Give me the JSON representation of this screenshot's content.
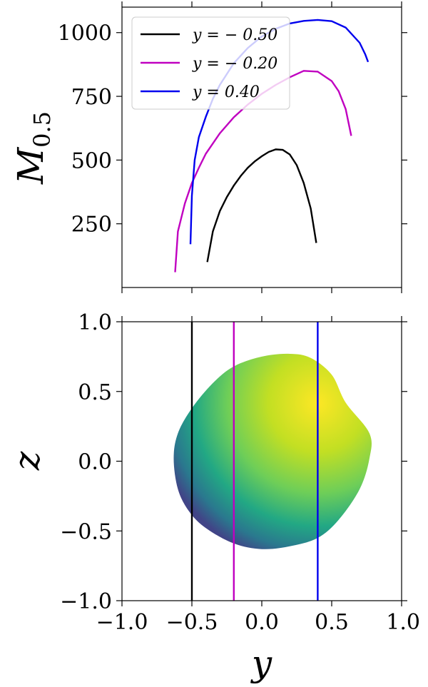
{
  "chart_data": [
    {
      "type": "line",
      "ylabel_base": "M",
      "ylabel_sub": "0.5",
      "xlim": [
        -1.0,
        1.0
      ],
      "ylim": [
        0,
        1100
      ],
      "yticks": [
        250,
        500,
        750,
        1000
      ],
      "ytick_labels": [
        "250",
        "500",
        "750",
        "1000"
      ],
      "legend_position": "top-left",
      "series": [
        {
          "name": "y = − 0.50",
          "color": "#000000",
          "x": [
            -0.39,
            -0.35,
            -0.3,
            -0.25,
            -0.2,
            -0.15,
            -0.1,
            -0.05,
            0.0,
            0.05,
            0.1,
            0.15,
            0.2,
            0.25,
            0.3,
            0.35,
            0.39
          ],
          "y": [
            100,
            220,
            300,
            355,
            400,
            438,
            470,
            495,
            515,
            532,
            542,
            540,
            522,
            480,
            410,
            310,
            175
          ]
        },
        {
          "name": "y = − 0.20",
          "color": "#c000c0",
          "x": [
            -0.62,
            -0.6,
            -0.55,
            -0.5,
            -0.45,
            -0.4,
            -0.3,
            -0.2,
            -0.1,
            0.0,
            0.1,
            0.2,
            0.3,
            0.4,
            0.5,
            0.55,
            0.6,
            0.64
          ],
          "y": [
            60,
            220,
            330,
            410,
            470,
            525,
            605,
            668,
            718,
            760,
            795,
            825,
            850,
            847,
            810,
            770,
            700,
            595
          ]
        },
        {
          "name": "y = 0.40",
          "color": "#0000ee",
          "x": [
            -0.51,
            -0.5,
            -0.48,
            -0.45,
            -0.4,
            -0.35,
            -0.3,
            -0.2,
            -0.1,
            0.0,
            0.1,
            0.2,
            0.3,
            0.4,
            0.5,
            0.6,
            0.7,
            0.74,
            0.76
          ],
          "y": [
            170,
            360,
            500,
            590,
            670,
            740,
            795,
            880,
            940,
            985,
            1015,
            1036,
            1046,
            1050,
            1045,
            1020,
            960,
            915,
            885
          ]
        }
      ]
    },
    {
      "type": "scatter",
      "xlabel": "y",
      "ylabel": "z",
      "xlim": [
        -1.0,
        1.0
      ],
      "ylim": [
        -1.0,
        1.0
      ],
      "xticks": [
        -1.0,
        -0.5,
        0.0,
        0.5,
        1.0
      ],
      "xtick_labels": [
        "−1.0",
        "−0.5",
        "0.0",
        "0.5",
        "1.0"
      ],
      "yticks": [
        1.0,
        0.5,
        0.0,
        -0.5,
        -1.0
      ],
      "ytick_labels": [
        "1.0",
        "0.5",
        "0.0",
        "−0.5",
        "−1.0"
      ],
      "vertical_lines": [
        {
          "x": -0.5,
          "color": "#000000"
        },
        {
          "x": -0.2,
          "color": "#c000c0"
        },
        {
          "x": 0.4,
          "color": "#0000ee"
        }
      ],
      "region": {
        "colormap": "viridis",
        "boundary": [
          [
            -0.63,
            0.02
          ],
          [
            -0.6,
            0.2
          ],
          [
            -0.5,
            0.38
          ],
          [
            -0.35,
            0.56
          ],
          [
            -0.2,
            0.68
          ],
          [
            0.0,
            0.75
          ],
          [
            0.2,
            0.77
          ],
          [
            0.35,
            0.74
          ],
          [
            0.5,
            0.62
          ],
          [
            0.6,
            0.42
          ],
          [
            0.77,
            0.2
          ],
          [
            0.77,
            0.02
          ],
          [
            0.7,
            -0.2
          ],
          [
            0.55,
            -0.42
          ],
          [
            0.4,
            -0.55
          ],
          [
            0.2,
            -0.61
          ],
          [
            0.0,
            -0.63
          ],
          [
            -0.2,
            -0.59
          ],
          [
            -0.4,
            -0.48
          ],
          [
            -0.52,
            -0.36
          ],
          [
            -0.6,
            -0.2
          ]
        ]
      }
    }
  ]
}
